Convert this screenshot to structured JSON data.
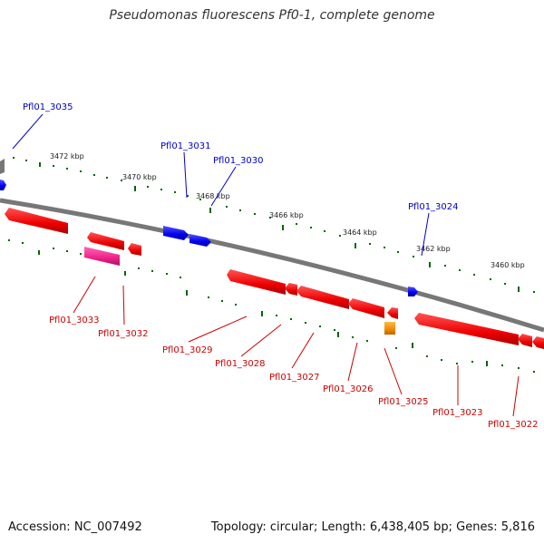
{
  "title": "Pseudomonas fluorescens Pf0-1, complete genome",
  "footer": {
    "accession": "Accession: NC_007492",
    "summary": "Topology: circular; Length: 6,438,405 bp; Genes: 5,816"
  },
  "colors": {
    "forward_gene": "#0000ee",
    "reverse_gene": "#ee0000",
    "pink_gene": "#ee2288",
    "orange_gene": "#ee8800",
    "tick_mark": "#006600",
    "backbone": "#777777"
  },
  "ticks": [
    "3472 kbp",
    "3470 kbp",
    "3468 kbp",
    "3466 kbp",
    "3464 kbp",
    "3462 kbp",
    "3460 kbp"
  ],
  "genes_top": [
    "Pfl01_3035",
    "Pfl01_3031",
    "Pfl01_3030",
    "Pfl01_3024"
  ],
  "genes_bottom": [
    "Pfl01_3033",
    "Pfl01_3032",
    "Pfl01_3029",
    "Pfl01_3028",
    "Pfl01_3027",
    "Pfl01_3026",
    "Pfl01_3025",
    "Pfl01_3023",
    "Pfl01_3022"
  ]
}
